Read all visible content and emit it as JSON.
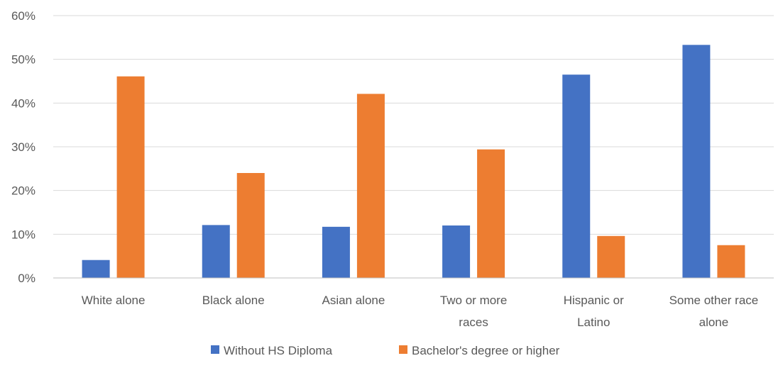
{
  "chart_data": {
    "type": "bar",
    "categories": [
      [
        "White alone"
      ],
      [
        "Black alone"
      ],
      [
        "Asian alone"
      ],
      [
        "Two or more",
        "races"
      ],
      [
        "Hispanic or",
        "Latino"
      ],
      [
        "Some other race",
        "alone"
      ]
    ],
    "series": [
      {
        "name": "Without HS Diploma",
        "color": "#4472c4",
        "values": [
          4.1,
          12.1,
          11.7,
          12.0,
          46.5,
          53.3
        ]
      },
      {
        "name": "Bachelor's degree or higher",
        "color": "#ed7d31",
        "values": [
          46.1,
          24.0,
          42.1,
          29.4,
          9.6,
          7.5
        ]
      }
    ],
    "yticks": [
      "0%",
      "10%",
      "20%",
      "30%",
      "40%",
      "50%",
      "60%"
    ],
    "ylim": [
      0,
      60
    ],
    "grid": true,
    "legend_position": "bottom",
    "title": "",
    "xlabel": "",
    "ylabel": ""
  }
}
